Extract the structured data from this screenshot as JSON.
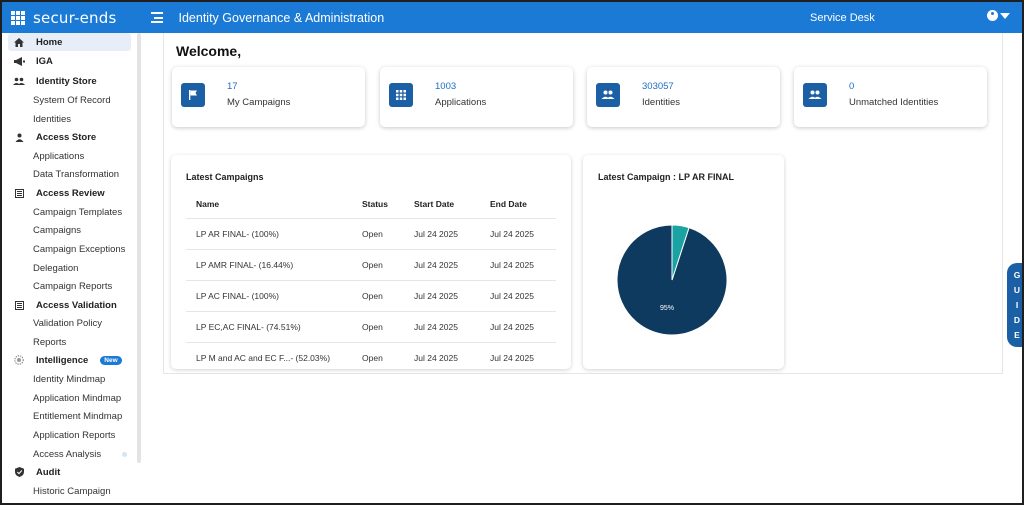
{
  "header": {
    "logo": "secur-ends",
    "app_title": "Identity Governance & Administration",
    "service_desk": "Service Desk"
  },
  "sidebar": {
    "items": [
      {
        "label": "Home",
        "icon": "home-icon",
        "type": "header",
        "active": true
      },
      {
        "label": "IGA",
        "icon": "megaphone-icon",
        "type": "header"
      },
      {
        "label": "Identity Store",
        "icon": "people-icon",
        "type": "header"
      },
      {
        "label": "System Of Record",
        "type": "sub"
      },
      {
        "label": "Identities",
        "type": "sub"
      },
      {
        "label": "Access Store",
        "icon": "person-icon",
        "type": "header"
      },
      {
        "label": "Applications",
        "type": "sub"
      },
      {
        "label": "Data Transformation",
        "type": "sub"
      },
      {
        "label": "Access Review",
        "icon": "list-icon",
        "type": "header"
      },
      {
        "label": "Campaign Templates",
        "type": "sub"
      },
      {
        "label": "Campaigns",
        "type": "sub"
      },
      {
        "label": "Campaign Exceptions",
        "type": "sub"
      },
      {
        "label": "Delegation",
        "type": "sub"
      },
      {
        "label": "Campaign Reports",
        "type": "sub"
      },
      {
        "label": "Access Validation",
        "icon": "list-icon",
        "type": "header"
      },
      {
        "label": "Validation Policy",
        "type": "sub"
      },
      {
        "label": "Reports",
        "type": "sub"
      },
      {
        "label": "Intelligence",
        "icon": "brain-icon",
        "type": "header",
        "badge": "New"
      },
      {
        "label": "Identity Mindmap",
        "type": "sub"
      },
      {
        "label": "Application Mindmap",
        "type": "sub"
      },
      {
        "label": "Entitlement Mindmap",
        "type": "sub"
      },
      {
        "label": "Application Reports",
        "type": "sub"
      },
      {
        "label": "Access Analysis",
        "type": "sub"
      },
      {
        "label": "Audit",
        "icon": "shield-icon",
        "type": "header"
      },
      {
        "label": "Historic Campaign",
        "type": "sub"
      }
    ]
  },
  "main": {
    "welcome": "Welcome,",
    "stats": [
      {
        "value": "17",
        "label": "My Campaigns",
        "icon": "flag-icon"
      },
      {
        "value": "1003",
        "label": "Applications",
        "icon": "apps-grid-icon"
      },
      {
        "value": "303057",
        "label": "Identities",
        "icon": "people-icon"
      },
      {
        "value": "0",
        "label": "Unmatched Identities",
        "icon": "people-icon"
      }
    ],
    "latest_campaigns": {
      "title": "Latest Campaigns",
      "columns": [
        "Name",
        "Status",
        "Start Date",
        "End Date"
      ],
      "rows": [
        [
          "LP AR FINAL- (100%)",
          "Open",
          "Jul 24 2025",
          "Jul 24 2025"
        ],
        [
          "LP AMR FINAL- (16.44%)",
          "Open",
          "Jul 24 2025",
          "Jul 24 2025"
        ],
        [
          "LP AC FINAL- (100%)",
          "Open",
          "Jul 24 2025",
          "Jul 24 2025"
        ],
        [
          "LP EC,AC FINAL- (74.51%)",
          "Open",
          "Jul 24 2025",
          "Jul 24 2025"
        ],
        [
          "LP M and AC and EC F...- (52.03%)",
          "Open",
          "Jul 24 2025",
          "Jul 24 2025"
        ]
      ]
    },
    "latest_campaign": {
      "title": "Latest Campaign : LP AR FINAL",
      "pie_label": "95%"
    }
  },
  "chart_data": {
    "type": "pie",
    "title": "Latest Campaign : LP AR FINAL",
    "slices": [
      {
        "value": 95,
        "color": "#0f3a5f"
      },
      {
        "value": 5,
        "color": "#1aa3a3"
      }
    ],
    "data_labels": [
      "95%",
      ""
    ]
  },
  "guide": {
    "letters": [
      "G",
      "U",
      "I",
      "D",
      "E"
    ]
  },
  "colors": {
    "topbar": "#1a7ad6",
    "accent": "#1b5fa4",
    "pie_main": "#0f3a5f",
    "pie_minor": "#1aa3a3"
  }
}
